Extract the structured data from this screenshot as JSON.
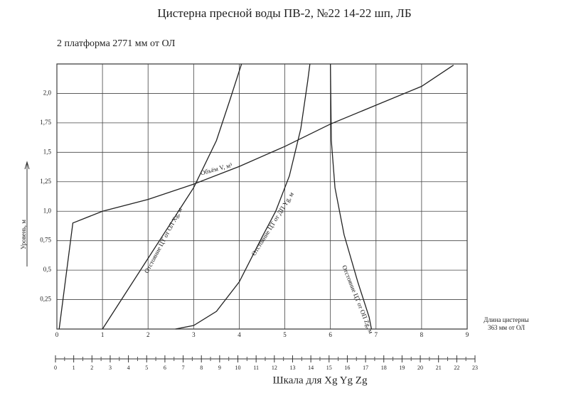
{
  "chart_data": {
    "type": "line",
    "title": "Цистерна пресной воды ПВ-2, №22   14-22 шп, ЛБ",
    "subtitle": "2 платформа 2771 мм от ОЛ",
    "y_label": "Уровень, м",
    "x_annotation": [
      "Длина цистерны",
      "363 мм от ОЛ"
    ],
    "xlim": [
      0,
      9
    ],
    "xticks": [
      0,
      1,
      2,
      3,
      4,
      5,
      6,
      7,
      8,
      9
    ],
    "ylim": [
      0,
      2.25
    ],
    "yticks": [
      {
        "value": 0.25,
        "label": "0,25"
      },
      {
        "value": 0.5,
        "label": "0,5"
      },
      {
        "value": 0.75,
        "label": "0,75"
      },
      {
        "value": 1.0,
        "label": "1,0"
      },
      {
        "value": 1.25,
        "label": "1,25"
      },
      {
        "value": 1.5,
        "label": "1,5"
      },
      {
        "value": 1.75,
        "label": "1,75"
      },
      {
        "value": 2.0,
        "label": "2,0"
      }
    ],
    "grid": true,
    "x2lim": [
      0,
      23
    ],
    "x2ticks": [
      0,
      1,
      2,
      3,
      4,
      5,
      6,
      7,
      8,
      9,
      10,
      11,
      12,
      13,
      14,
      15,
      16,
      17,
      18,
      19,
      20,
      21,
      22,
      23
    ],
    "x2_label": "Шкала для Xg Yg Zg",
    "series": [
      {
        "name": "Объём V, м³",
        "color": "#222222",
        "x": [
          0.05,
          0.35,
          1,
          2,
          3,
          4,
          5,
          6,
          7,
          8,
          8.7
        ],
        "values": [
          0,
          0.9,
          1.0,
          1.1,
          1.23,
          1.38,
          1.55,
          1.74,
          1.9,
          2.06,
          2.24
        ]
      },
      {
        "name": "Отстояние ЦТ от ОЛ Xg, м",
        "color": "#222222",
        "x": [
          1,
          1.5,
          2,
          2.5,
          3,
          3.5,
          3.8,
          4.05
        ],
        "values": [
          0,
          0.3,
          0.6,
          0.9,
          1.2,
          1.6,
          1.95,
          2.25
        ]
      },
      {
        "name": "Отстояние ЦТ от ДП Yg, м",
        "color": "#222222",
        "x": [
          2.6,
          3,
          3.5,
          4,
          4.5,
          4.8,
          5.1,
          5.35,
          5.5,
          5.55
        ],
        "values": [
          0,
          0.03,
          0.15,
          0.4,
          0.78,
          1.0,
          1.3,
          1.7,
          2.1,
          2.25
        ]
      },
      {
        "name": "Отстояние ЦТ от ОП Zg, м",
        "color": "#222222",
        "x": [
          6.0,
          6.02,
          6.1,
          6.3,
          6.6,
          6.85,
          6.9
        ],
        "values": [
          2.25,
          1.6,
          1.2,
          0.8,
          0.4,
          0.1,
          0
        ]
      }
    ]
  }
}
